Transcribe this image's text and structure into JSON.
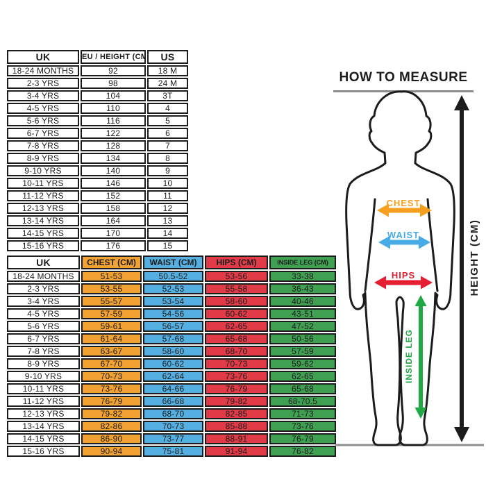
{
  "conversion_table": {
    "headers": [
      "UK",
      "EU / HEIGHT (CM)",
      "US"
    ],
    "rows": [
      [
        "18-24 MONTHS",
        "92",
        "18 M"
      ],
      [
        "2-3 YRS",
        "98",
        "24 M"
      ],
      [
        "3-4 YRS",
        "104",
        "3T"
      ],
      [
        "4-5 YRS",
        "110",
        "4"
      ],
      [
        "5-6 YRS",
        "116",
        "5"
      ],
      [
        "6-7 YRS",
        "122",
        "6"
      ],
      [
        "7-8 YRS",
        "128",
        "7"
      ],
      [
        "8-9 YRS",
        "134",
        "8"
      ],
      [
        "9-10 YRS",
        "140",
        "9"
      ],
      [
        "10-11 YRS",
        "146",
        "10"
      ],
      [
        "11-12 YRS",
        "152",
        "11"
      ],
      [
        "12-13 YRS",
        "158",
        "12"
      ],
      [
        "13-14 YRS",
        "164",
        "13"
      ],
      [
        "14-15 YRS",
        "170",
        "14"
      ],
      [
        "15-16 YRS",
        "176",
        "15"
      ]
    ]
  },
  "measurements_table": {
    "headers": [
      "UK",
      "CHEST (CM)",
      "WAIST (CM)",
      "HIPS (CM)",
      "INSIDE LEG (CM)"
    ],
    "rows": [
      [
        "18-24 MONTHS",
        "51-53",
        "50.5-52",
        "53-56",
        "33-38"
      ],
      [
        "2-3 YRS",
        "53-55",
        "52-53",
        "55-58",
        "36-43"
      ],
      [
        "3-4 YRS",
        "55-57",
        "53-54",
        "58-60",
        "40-46"
      ],
      [
        "4-5 YRS",
        "57-59",
        "54-56",
        "60-62",
        "43-51"
      ],
      [
        "5-6 YRS",
        "59-61",
        "56-57",
        "62-65",
        "47-52"
      ],
      [
        "6-7 YRS",
        "61-64",
        "57-68",
        "65-68",
        "50-56"
      ],
      [
        "7-8 YRS",
        "63-67",
        "58-60",
        "68-70",
        "57-59"
      ],
      [
        "8-9 YRS",
        "67-70",
        "60-62",
        "70-73",
        "59-62"
      ],
      [
        "9-10 YRS",
        "70-73",
        "62-64",
        "73-76",
        "62-65"
      ],
      [
        "10-11 YRS",
        "73-76",
        "64-66",
        "76-79",
        "65-68"
      ],
      [
        "11-12 YRS",
        "76-79",
        "66-68",
        "79-82",
        "68-70.5"
      ],
      [
        "12-13 YRS",
        "79-82",
        "68-70",
        "82-85",
        "71-73"
      ],
      [
        "13-14 YRS",
        "82-86",
        "70-73",
        "85-88",
        "73-76"
      ],
      [
        "14-15 YRS",
        "86-90",
        "73-77",
        "88-91",
        "76-79"
      ],
      [
        "15-16 YRS",
        "90-94",
        "75-81",
        "91-94",
        "76-82"
      ]
    ]
  },
  "measure_guide": {
    "title": "HOW TO MEASURE",
    "chest_label": "CHEST",
    "waist_label": "WAIST",
    "hips_label": "HIPS",
    "inside_leg_label": "INSIDE LEG",
    "height_label": "HEIGHT (CM)"
  },
  "colors": {
    "chest_orange": "#F2A233",
    "waist_blue": "#56AFE1",
    "hips_red": "#E23B48",
    "inside_leg_green": "#3FA052",
    "arrow_orange": "#F5A11F",
    "arrow_blue": "#47ABE8",
    "arrow_red": "#E41F31",
    "arrow_green": "#1FA945",
    "text_black": "#1C1C1C",
    "line_gray": "#8C8C8C"
  }
}
